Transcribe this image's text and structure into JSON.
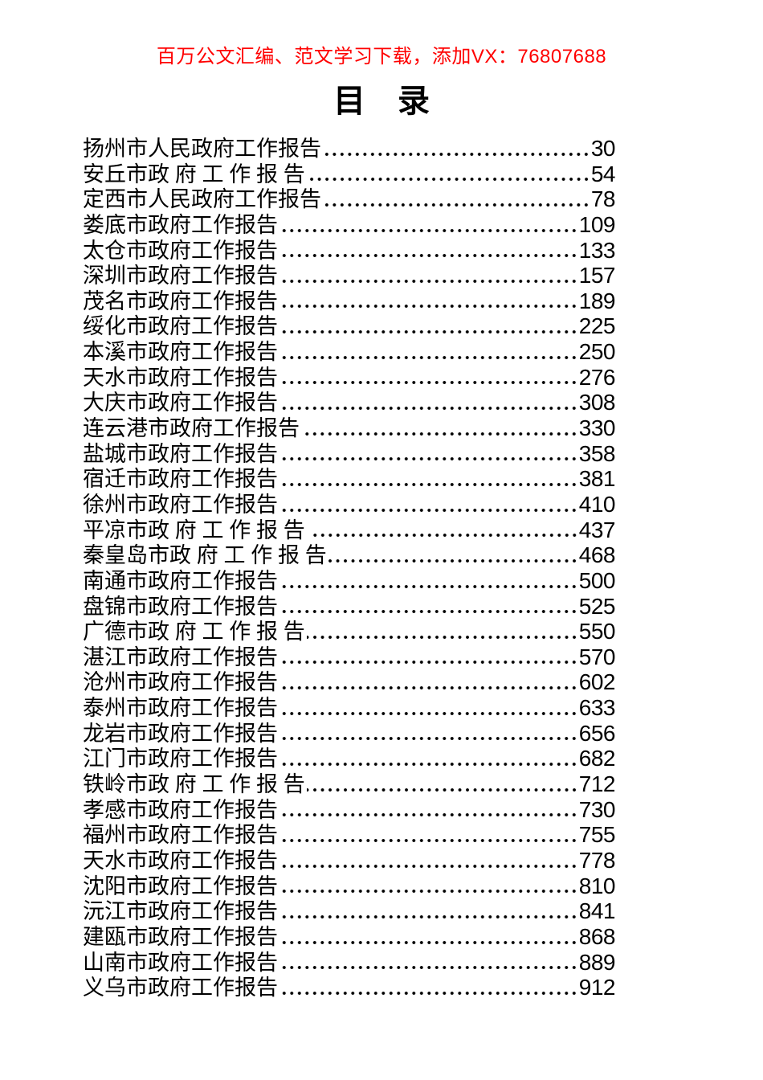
{
  "header": {
    "promo_text": "百万公文汇编、范文学习下载，添加VX：76807688",
    "color": "#ff0000"
  },
  "title": "目　录",
  "toc": {
    "entries": [
      {
        "title": "扬州市人民政府工作报告",
        "page": "30"
      },
      {
        "title": "安丘市政 府 工 作 报 告",
        "page": "54"
      },
      {
        "title": "定西市人民政府工作报告",
        "page": "78"
      },
      {
        "title": "娄底市政府工作报告",
        "page": "109"
      },
      {
        "title": "太仓市政府工作报告",
        "page": "133"
      },
      {
        "title": "深圳市政府工作报告",
        "page": "157"
      },
      {
        "title": "茂名市政府工作报告",
        "page": "189"
      },
      {
        "title": "绥化市政府工作报告",
        "page": "225"
      },
      {
        "title": "本溪市政府工作报告",
        "page": "250"
      },
      {
        "title": "天水市政府工作报告",
        "page": "276"
      },
      {
        "title": "大庆市政府工作报告",
        "page": "308"
      },
      {
        "title": "连云港市政府工作报告",
        "page": "330"
      },
      {
        "title": "盐城市政府工作报告",
        "page": "358"
      },
      {
        "title": "宿迁市政府工作报告",
        "page": "381"
      },
      {
        "title": "徐州市政府工作报告",
        "page": "410"
      },
      {
        "title": "平凉市政 府 工 作 报 告 ",
        "page": "437"
      },
      {
        "title": "秦皇岛市政 府 工 作 报 告",
        "page": "468"
      },
      {
        "title": "南通市政府工作报告",
        "page": "500"
      },
      {
        "title": "盘锦市政府工作报告",
        "page": "525"
      },
      {
        "title": "广德市政 府 工 作 报 告",
        "page": "550"
      },
      {
        "title": "湛江市政府工作报告",
        "page": "570"
      },
      {
        "title": "沧州市政府工作报告",
        "page": "602"
      },
      {
        "title": "泰州市政府工作报告",
        "page": "633"
      },
      {
        "title": "龙岩市政府工作报告",
        "page": "656"
      },
      {
        "title": "江门市政府工作报告",
        "page": "682"
      },
      {
        "title": "铁岭市政 府 工 作 报 告",
        "page": "712"
      },
      {
        "title": "孝感市政府工作报告",
        "page": "730"
      },
      {
        "title": "福州市政府工作报告",
        "page": "755"
      },
      {
        "title": "天水市政府工作报告",
        "page": "778"
      },
      {
        "title": "沈阳市政府工作报告",
        "page": "810"
      },
      {
        "title": "沅江市政府工作报告",
        "page": "841"
      },
      {
        "title": "建瓯市政府工作报告",
        "page": "868"
      },
      {
        "title": "山南市政府工作报告",
        "page": "889"
      },
      {
        "title": "义乌市政府工作报告",
        "page": "912"
      }
    ]
  }
}
